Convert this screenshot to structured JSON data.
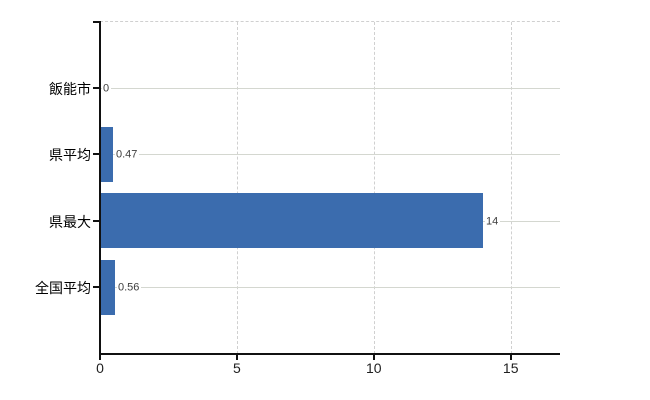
{
  "chart_data": {
    "type": "bar",
    "orientation": "horizontal",
    "title": "",
    "categories": [
      "飯能市",
      "県平均",
      "県最大",
      "全国平均"
    ],
    "values": [
      0,
      0.47,
      14,
      0.56
    ],
    "value_labels": [
      "0",
      "0.47",
      "14",
      "0.56"
    ],
    "xticks": [
      0,
      5,
      10,
      15
    ],
    "xtick_labels": [
      "0",
      "5",
      "10",
      "15"
    ],
    "xlim": [
      0,
      16.8
    ],
    "grid": true,
    "legend": false,
    "colors": {
      "bar": "#3b6cae",
      "axis": "#111111",
      "h_gridline": "#d4d7d0",
      "v_gridline": "#d0d0d0",
      "category_label": "#000000",
      "x_tick_label": "#1f1f1f",
      "value_label": "#3d3d3d",
      "background": "#ffffff"
    }
  }
}
